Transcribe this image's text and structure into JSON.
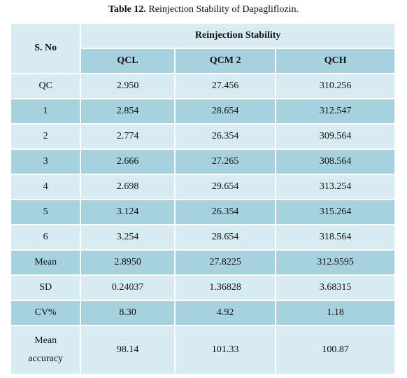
{
  "caption": {
    "label": "Table 12.",
    "text": "Reinjection Stability of Dapagliflozin."
  },
  "table": {
    "row_header": "S. No",
    "group_header": "Reinjection Stability",
    "columns": [
      "QCL",
      "QCM 2",
      "QCH"
    ],
    "rows": [
      {
        "label": "QC",
        "values": [
          "2.950",
          "27.456",
          "310.256"
        ]
      },
      {
        "label": "1",
        "values": [
          "2.854",
          "28.654",
          "312.547"
        ]
      },
      {
        "label": "2",
        "values": [
          "2.774",
          "26.354",
          "309.564"
        ]
      },
      {
        "label": "3",
        "values": [
          "2.666",
          "27.265",
          "308.564"
        ]
      },
      {
        "label": "4",
        "values": [
          "2.698",
          "29.654",
          "313.254"
        ]
      },
      {
        "label": "5",
        "values": [
          "3.124",
          "26.354",
          "315.264"
        ]
      },
      {
        "label": "6",
        "values": [
          "3.254",
          "28.654",
          "318.564"
        ]
      },
      {
        "label": "Mean",
        "values": [
          "2.8950",
          "27.8225",
          "312.9595"
        ]
      },
      {
        "label": "SD",
        "values": [
          "0.24037",
          "1.36828",
          "3.68315"
        ]
      },
      {
        "label": "CV%",
        "values": [
          "8.30",
          "4.92",
          "1.18"
        ]
      },
      {
        "label_line1": "Mean",
        "label_line2": "accuracy",
        "values": [
          "98.14",
          "101.33",
          "100.87"
        ]
      }
    ]
  },
  "colors": {
    "light_row": "#d7ebf3",
    "dark_row": "#a6d1df"
  }
}
